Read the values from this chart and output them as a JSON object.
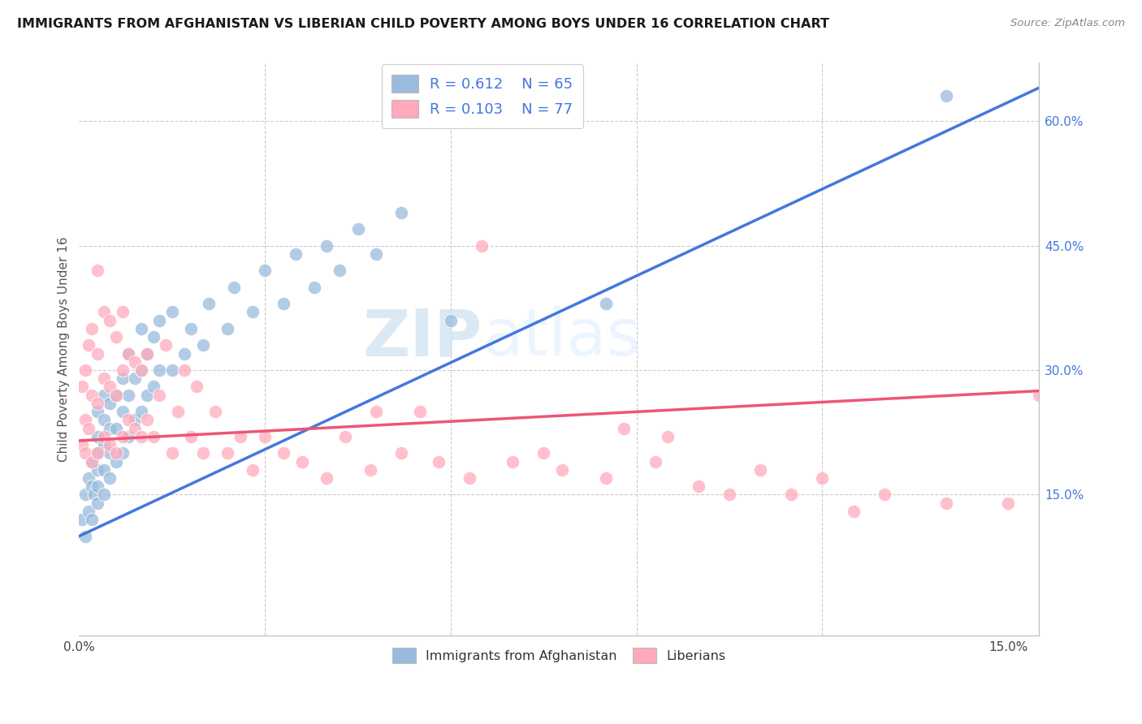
{
  "title": "IMMIGRANTS FROM AFGHANISTAN VS LIBERIAN CHILD POVERTY AMONG BOYS UNDER 16 CORRELATION CHART",
  "source": "Source: ZipAtlas.com",
  "ylabel": "Child Poverty Among Boys Under 16",
  "xlim": [
    0.0,
    0.155
  ],
  "ylim": [
    -0.02,
    0.67
  ],
  "blue_color": "#99BBDD",
  "pink_color": "#FFAABB",
  "line_blue": "#4477DD",
  "line_pink": "#EE5577",
  "watermark_zip": "ZIP",
  "watermark_atlas": "atlas",
  "blue_scatter_x": [
    0.0005,
    0.001,
    0.001,
    0.0015,
    0.0015,
    0.002,
    0.002,
    0.002,
    0.0025,
    0.003,
    0.003,
    0.003,
    0.003,
    0.003,
    0.003,
    0.004,
    0.004,
    0.004,
    0.004,
    0.004,
    0.005,
    0.005,
    0.005,
    0.005,
    0.006,
    0.006,
    0.006,
    0.007,
    0.007,
    0.007,
    0.008,
    0.008,
    0.008,
    0.009,
    0.009,
    0.01,
    0.01,
    0.01,
    0.011,
    0.011,
    0.012,
    0.012,
    0.013,
    0.013,
    0.015,
    0.015,
    0.017,
    0.018,
    0.02,
    0.021,
    0.024,
    0.025,
    0.028,
    0.03,
    0.033,
    0.035,
    0.038,
    0.04,
    0.042,
    0.045,
    0.048,
    0.052,
    0.06,
    0.085,
    0.14
  ],
  "blue_scatter_y": [
    0.12,
    0.1,
    0.15,
    0.13,
    0.17,
    0.12,
    0.16,
    0.19,
    0.15,
    0.14,
    0.16,
    0.18,
    0.2,
    0.22,
    0.25,
    0.15,
    0.18,
    0.21,
    0.24,
    0.27,
    0.17,
    0.2,
    0.23,
    0.26,
    0.19,
    0.23,
    0.27,
    0.2,
    0.25,
    0.29,
    0.22,
    0.27,
    0.32,
    0.24,
    0.29,
    0.25,
    0.3,
    0.35,
    0.27,
    0.32,
    0.28,
    0.34,
    0.3,
    0.36,
    0.3,
    0.37,
    0.32,
    0.35,
    0.33,
    0.38,
    0.35,
    0.4,
    0.37,
    0.42,
    0.38,
    0.44,
    0.4,
    0.45,
    0.42,
    0.47,
    0.44,
    0.49,
    0.36,
    0.38,
    0.63
  ],
  "pink_scatter_x": [
    0.0005,
    0.0005,
    0.001,
    0.001,
    0.001,
    0.0015,
    0.0015,
    0.002,
    0.002,
    0.002,
    0.003,
    0.003,
    0.003,
    0.003,
    0.004,
    0.004,
    0.004,
    0.005,
    0.005,
    0.005,
    0.006,
    0.006,
    0.006,
    0.007,
    0.007,
    0.007,
    0.008,
    0.008,
    0.009,
    0.009,
    0.01,
    0.01,
    0.011,
    0.011,
    0.012,
    0.013,
    0.014,
    0.015,
    0.016,
    0.017,
    0.018,
    0.019,
    0.02,
    0.022,
    0.024,
    0.026,
    0.028,
    0.03,
    0.033,
    0.036,
    0.04,
    0.043,
    0.047,
    0.052,
    0.058,
    0.063,
    0.07,
    0.078,
    0.085,
    0.093,
    0.1,
    0.11,
    0.12,
    0.13,
    0.14,
    0.15,
    0.155,
    0.048,
    0.055,
    0.065,
    0.075,
    0.088,
    0.095,
    0.105,
    0.115,
    0.125
  ],
  "pink_scatter_y": [
    0.21,
    0.28,
    0.24,
    0.2,
    0.3,
    0.23,
    0.33,
    0.19,
    0.27,
    0.35,
    0.2,
    0.26,
    0.32,
    0.42,
    0.22,
    0.29,
    0.37,
    0.21,
    0.28,
    0.36,
    0.2,
    0.27,
    0.34,
    0.22,
    0.3,
    0.37,
    0.24,
    0.32,
    0.23,
    0.31,
    0.22,
    0.3,
    0.24,
    0.32,
    0.22,
    0.27,
    0.33,
    0.2,
    0.25,
    0.3,
    0.22,
    0.28,
    0.2,
    0.25,
    0.2,
    0.22,
    0.18,
    0.22,
    0.2,
    0.19,
    0.17,
    0.22,
    0.18,
    0.2,
    0.19,
    0.17,
    0.19,
    0.18,
    0.17,
    0.19,
    0.16,
    0.18,
    0.17,
    0.15,
    0.14,
    0.14,
    0.27,
    0.25,
    0.25,
    0.45,
    0.2,
    0.23,
    0.22,
    0.15,
    0.15,
    0.13
  ]
}
